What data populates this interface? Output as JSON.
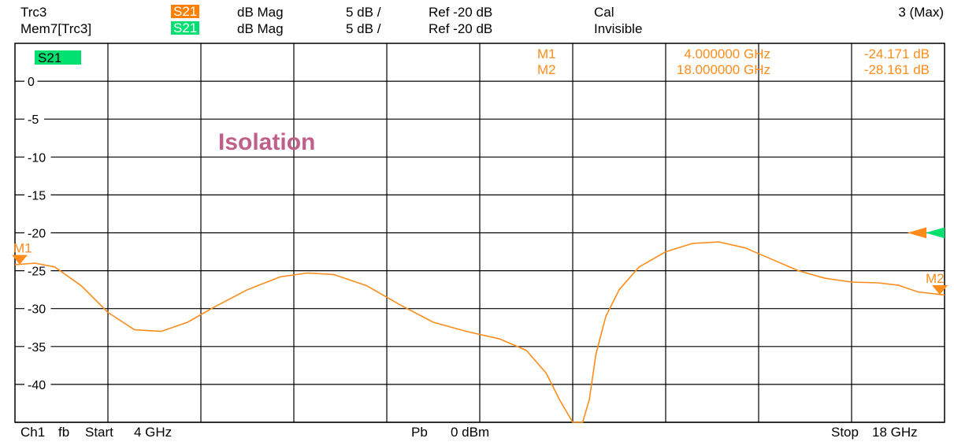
{
  "header": {
    "row1": {
      "trace": "Trc3",
      "param": "S21",
      "format": "dB Mag",
      "scale": "5 dB /",
      "ref": "Ref -20 dB",
      "status": "Cal"
    },
    "row2": {
      "trace": "Mem7[Trc3]",
      "param": "S21",
      "format": "dB Mag",
      "scale": "5 dB /",
      "ref": "Ref -20 dB",
      "status": "Invisible"
    },
    "max_label": "3 (Max)"
  },
  "footer": {
    "channel": "Ch1",
    "mode": "fb",
    "start_label": "Start",
    "start_value": "4 GHz",
    "power_label": "Pb",
    "power_value": "0 dBm",
    "stop_label": "Stop",
    "stop_value": "18 GHz"
  },
  "colors": {
    "trace": "#ff8c1a",
    "memory": "#00e070",
    "marker_text": "#ff8c1a",
    "annotation": "#c0608a",
    "grid": "#000000"
  },
  "chart_data": {
    "type": "line",
    "title": "",
    "annotation": "Isolation",
    "trace_tag": "S21",
    "xlabel": "",
    "ylabel": "",
    "x_unit": "GHz",
    "xlim": [
      4,
      18
    ],
    "ylim": [
      -45,
      5
    ],
    "y_ticks": [
      0,
      -5,
      -10,
      -15,
      -20,
      -25,
      -30,
      -35,
      -40
    ],
    "y_tick_labels": [
      "0",
      "-5",
      "-10",
      "-15",
      "-20",
      "-25",
      "-30",
      "-35",
      "-40"
    ],
    "x_divisions": 10,
    "grid": true,
    "reference_level": -20,
    "series": [
      {
        "x": [
          4.0,
          4.3,
          4.6,
          5.0,
          5.4,
          5.8,
          6.2,
          6.6,
          7.0,
          7.5,
          8.0,
          8.4,
          8.8,
          9.3,
          9.8,
          10.3,
          10.8,
          11.3,
          11.7,
          12.0,
          12.2,
          12.4,
          12.55,
          12.65,
          12.75,
          12.9,
          13.1,
          13.4,
          13.8,
          14.2,
          14.6,
          15.0,
          15.4,
          15.8,
          16.2,
          16.6,
          17.0,
          17.3,
          17.6,
          18.0
        ],
        "y": [
          -24.2,
          -24.0,
          -24.5,
          -27.0,
          -30.5,
          -32.8,
          -33.0,
          -31.8,
          -29.8,
          -27.5,
          -25.8,
          -25.3,
          -25.5,
          -27.0,
          -29.5,
          -31.8,
          -33.0,
          -34.0,
          -35.5,
          -38.5,
          -42.0,
          -45.5,
          -45.5,
          -42.0,
          -36.0,
          -31.0,
          -27.5,
          -24.5,
          -22.5,
          -21.4,
          -21.2,
          -22.0,
          -23.5,
          -25.0,
          -26.0,
          -26.5,
          -26.6,
          -26.9,
          -27.8,
          -28.2
        ]
      }
    ],
    "markers": [
      {
        "name": "M1",
        "label": "M1",
        "x": 4.0,
        "y": -24.171,
        "freq_text": "4.000000 GHz",
        "value_text": "-24.171 dB"
      },
      {
        "name": "M2",
        "label": "M2",
        "x": 18.0,
        "y": -28.161,
        "freq_text": "18.000000 GHz",
        "value_text": "-28.161 dB"
      }
    ]
  }
}
